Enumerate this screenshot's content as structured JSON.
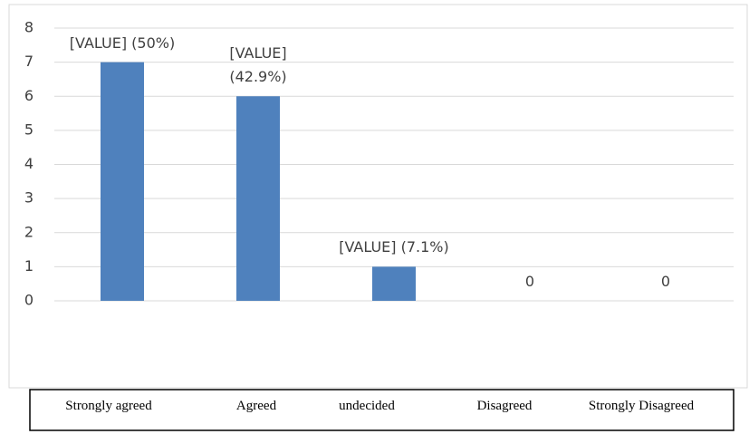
{
  "chart_data": {
    "type": "bar",
    "categories": [
      "Strongly agreed",
      "Agreed",
      "undecided",
      "Disagreed",
      "Strongly Disagreed"
    ],
    "values": [
      7,
      6,
      1,
      0,
      0
    ],
    "value_labels": [
      "[VALUE] (50%)",
      "[VALUE] (42.9%)",
      "[VALUE] (7.1%)",
      "0",
      "0"
    ],
    "color": "#4f81bd",
    "ylim": [
      0,
      8
    ],
    "yticks": [
      0,
      1,
      2,
      3,
      4,
      5,
      6,
      7,
      8
    ],
    "grid": true
  }
}
